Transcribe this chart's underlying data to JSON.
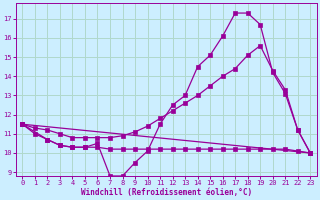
{
  "xlabel": "Windchill (Refroidissement éolien,°C)",
  "background_color": "#cceeff",
  "grid_color": "#b0d8cc",
  "line_color": "#990099",
  "xlim": [
    -0.5,
    23.5
  ],
  "ylim": [
    8.8,
    17.8
  ],
  "yticks": [
    9,
    10,
    11,
    12,
    13,
    14,
    15,
    16,
    17
  ],
  "xticks": [
    0,
    1,
    2,
    3,
    4,
    5,
    6,
    7,
    8,
    9,
    10,
    11,
    12,
    13,
    14,
    15,
    16,
    17,
    18,
    19,
    20,
    21,
    22,
    23
  ],
  "line1_x": [
    0,
    1,
    2,
    3,
    4,
    5,
    6,
    7,
    8,
    9,
    10,
    11,
    12,
    13,
    14,
    15,
    16,
    17,
    18,
    19,
    20,
    21,
    22,
    23
  ],
  "line1_y": [
    11.5,
    11.0,
    10.7,
    10.4,
    10.3,
    10.3,
    10.5,
    8.8,
    8.8,
    9.5,
    10.1,
    11.5,
    12.5,
    13.0,
    14.5,
    15.1,
    16.1,
    17.3,
    17.3,
    16.7,
    14.2,
    13.1,
    11.2,
    10.0
  ],
  "line2_x": [
    0,
    2,
    3,
    4,
    5,
    6,
    7,
    8,
    9,
    10,
    11,
    12,
    13,
    14,
    15,
    16,
    17,
    18,
    19,
    20,
    21,
    22,
    23
  ],
  "line2_y": [
    11.5,
    10.7,
    10.4,
    10.3,
    10.3,
    10.3,
    10.2,
    10.2,
    10.2,
    10.2,
    10.2,
    10.2,
    10.2,
    10.2,
    10.2,
    10.2,
    10.2,
    10.2,
    10.2,
    10.2,
    10.2,
    10.1,
    10.0
  ],
  "line3_x": [
    0,
    23
  ],
  "line3_y": [
    11.5,
    10.0
  ],
  "line4_x": [
    0,
    1,
    2,
    3,
    4,
    5,
    6,
    7,
    8,
    9,
    10,
    11,
    12,
    13,
    14,
    15,
    16,
    17,
    18,
    19,
    20,
    21,
    22,
    23
  ],
  "line4_y": [
    11.5,
    11.3,
    11.2,
    11.0,
    10.8,
    10.8,
    10.8,
    10.8,
    10.9,
    11.1,
    11.4,
    11.8,
    12.2,
    12.6,
    13.0,
    13.5,
    14.0,
    14.4,
    15.1,
    15.6,
    14.3,
    13.3,
    11.2,
    10.0
  ]
}
